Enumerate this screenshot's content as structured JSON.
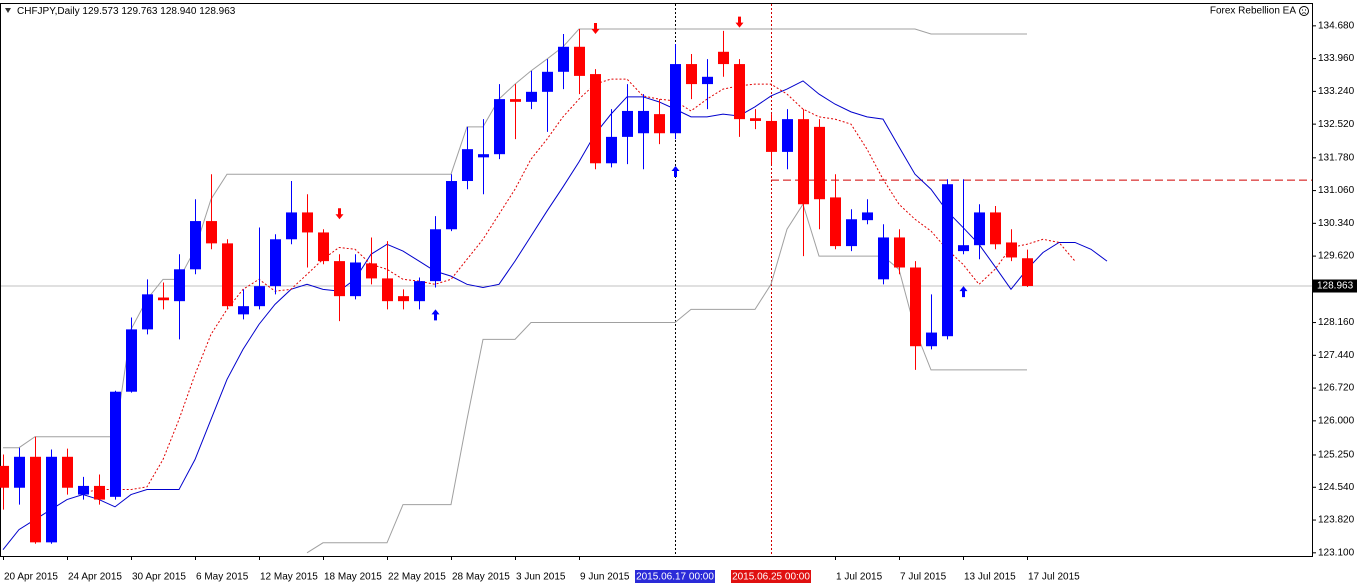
{
  "chart_data": {
    "type": "candlestick",
    "title": "CHFJPY,Daily",
    "header_values": [
      "129.573",
      "129.763",
      "128.940",
      "128.963"
    ],
    "expert_label": "Forex Rebellion EA",
    "categories": [
      "20 Apr 2015",
      null,
      null,
      null,
      "24 Apr 2015",
      null,
      null,
      null,
      "30 Apr 2015",
      null,
      null,
      null,
      "6 May 2015",
      null,
      null,
      null,
      "12 May 2015",
      null,
      null,
      null,
      "18 May 2015",
      null,
      null,
      null,
      "22 May 2015",
      null,
      null,
      null,
      "28 May 2015",
      null,
      null,
      null,
      "3 Jun 2015",
      null,
      null,
      null,
      "9 Jun 2015",
      null,
      null,
      null,
      null,
      null,
      null,
      null,
      null,
      null,
      null,
      null,
      null,
      null,
      null,
      null,
      "1 Jul 2015",
      null,
      null,
      null,
      "7 Jul 2015",
      null,
      null,
      null,
      "13 Jul 2015",
      null,
      null,
      null,
      "17 Jul 2015",
      null,
      null,
      null,
      null,
      null
    ],
    "open": [
      125.01,
      124.53,
      125.21,
      123.33,
      125.21,
      124.38,
      124.57,
      124.33,
      126.64,
      128.01,
      128.71,
      128.63,
      129.33,
      130.39,
      129.9,
      128.34,
      128.52,
      128.96,
      129.99,
      130.58,
      130.14,
      129.51,
      128.74,
      129.46,
      129.13,
      128.74,
      128.63,
      129.07,
      130.21,
      131.27,
      131.79,
      131.86,
      133.07,
      133.01,
      133.23,
      133.67,
      134.22,
      133.62,
      131.66,
      132.24,
      132.32,
      132.74,
      132.32,
      133.84,
      133.4,
      134.11,
      133.84,
      132.65,
      132.59,
      131.91,
      132.63,
      132.46,
      130.91,
      129.84,
      130.41,
      129.11,
      130.03,
      129.37,
      127.64,
      127.86,
      129.73,
      129.86,
      130.58,
      129.92,
      129.573,
      null,
      null,
      null,
      null,
      null
    ],
    "high": [
      125.26,
      125.41,
      125.65,
      125.37,
      125.39,
      124.77,
      124.82,
      126.66,
      128.27,
      129.11,
      129.04,
      129.66,
      130.87,
      131.42,
      129.99,
      128.89,
      130.25,
      130.1,
      131.27,
      130.98,
      130.21,
      129.66,
      129.66,
      130.03,
      129.95,
      128.89,
      129.15,
      130.5,
      131.42,
      132.46,
      132.63,
      133.4,
      133.4,
      133.69,
      133.95,
      134.5,
      134.61,
      133.73,
      132.85,
      133.4,
      133.18,
      133.07,
      134.28,
      134.06,
      133.95,
      134.57,
      133.95,
      132.85,
      132.74,
      132.85,
      132.85,
      132.63,
      131.42,
      130.65,
      130.87,
      130.32,
      130.21,
      129.51,
      128.78,
      131.31,
      131.31,
      130.76,
      130.72,
      130.21,
      129.763,
      null,
      null,
      null,
      null,
      null
    ],
    "low": [
      124.05,
      124.16,
      123.3,
      123.3,
      124.38,
      124.27,
      124.16,
      124.27,
      126.62,
      127.9,
      128.45,
      127.79,
      129.22,
      129.77,
      128.45,
      128.23,
      128.45,
      128.78,
      129.88,
      129.37,
      129.44,
      128.19,
      128.67,
      129.0,
      128.45,
      128.45,
      128.45,
      128.93,
      130.17,
      131.09,
      130.98,
      131.75,
      132.19,
      132.85,
      132.35,
      133.29,
      133.18,
      131.53,
      131.57,
      131.64,
      131.53,
      132.08,
      132.19,
      133.07,
      132.85,
      133.56,
      132.24,
      132.41,
      131.64,
      131.53,
      129.62,
      130.21,
      129.77,
      129.73,
      130.32,
      129.0,
      129.22,
      127.12,
      127.57,
      127.79,
      129.66,
      129.55,
      129.77,
      129.51,
      128.94,
      null,
      null,
      null,
      null,
      null
    ],
    "close": [
      124.53,
      125.21,
      123.33,
      125.21,
      124.53,
      124.57,
      124.27,
      126.64,
      128.01,
      128.78,
      128.65,
      129.33,
      130.39,
      129.9,
      128.52,
      128.52,
      128.96,
      129.99,
      130.58,
      130.14,
      129.51,
      128.74,
      129.48,
      129.13,
      128.63,
      128.63,
      129.07,
      130.21,
      131.27,
      131.97,
      131.86,
      133.07,
      133.01,
      133.23,
      133.67,
      134.22,
      133.58,
      131.66,
      132.24,
      132.81,
      132.81,
      132.32,
      133.84,
      133.4,
      133.56,
      133.84,
      132.63,
      132.59,
      131.91,
      132.63,
      130.76,
      130.87,
      129.84,
      130.43,
      130.58,
      130.03,
      129.37,
      127.64,
      127.94,
      131.2,
      129.86,
      130.58,
      129.88,
      129.59,
      128.963,
      null,
      null,
      null,
      null,
      null
    ],
    "bull_color": "#0000ff",
    "bear_color": "#ff0000",
    "series": [
      {
        "color": "#0000cc",
        "style": "solid",
        "values": [
          123.17,
          123.61,
          123.83,
          124.05,
          124.27,
          124.38,
          124.27,
          124.11,
          124.38,
          124.49,
          124.49,
          124.49,
          125.15,
          126.03,
          126.91,
          127.57,
          128.12,
          128.56,
          128.89,
          129.0,
          128.89,
          128.85,
          129.11,
          129.66,
          129.88,
          129.73,
          129.51,
          129.29,
          129.18,
          129.0,
          128.93,
          129.0,
          129.51,
          130.06,
          130.61,
          131.14,
          131.69,
          132.3,
          132.74,
          133.12,
          133.12,
          133.01,
          132.85,
          132.68,
          132.68,
          132.74,
          132.7,
          132.9,
          133.14,
          133.29,
          133.47,
          133.18,
          132.96,
          132.79,
          132.68,
          132.63,
          132.02,
          131.42,
          131.09,
          130.61,
          130.25,
          129.88,
          129.39,
          128.89,
          129.33,
          129.7,
          129.92,
          129.92,
          129.77,
          129.51
        ]
      },
      {
        "color": "#e00000",
        "style": "dotted",
        "values": [
          null,
          null,
          null,
          null,
          null,
          124.42,
          124.49,
          124.49,
          124.49,
          124.55,
          125.15,
          126.03,
          127.02,
          127.9,
          128.45,
          128.89,
          129.11,
          128.85,
          128.89,
          129.22,
          129.55,
          129.81,
          129.77,
          129.44,
          129.33,
          129.11,
          129.07,
          129.0,
          129.11,
          129.55,
          129.99,
          130.54,
          131.09,
          131.75,
          132.19,
          132.68,
          133.07,
          133.4,
          133.51,
          133.51,
          133.14,
          133.07,
          133.03,
          132.81,
          133.07,
          133.29,
          133.36,
          133.4,
          133.4,
          133.18,
          132.85,
          132.68,
          132.63,
          132.52,
          131.97,
          131.31,
          130.76,
          130.43,
          130.17,
          129.77,
          129.44,
          129.0,
          129.33,
          129.81,
          129.88,
          129.99,
          129.92,
          129.51,
          null,
          null
        ]
      },
      {
        "color": "#a0a0a0",
        "style": "solid",
        "values": [
          125.41,
          125.41,
          125.65,
          125.65,
          125.65,
          125.65,
          125.65,
          125.65,
          128.01,
          128.67,
          129.11,
          129.11,
          129.77,
          130.87,
          131.42,
          131.42,
          131.42,
          131.42,
          131.42,
          131.42,
          131.42,
          131.42,
          131.42,
          131.42,
          131.42,
          131.42,
          131.42,
          131.42,
          131.42,
          132.46,
          132.46,
          133.07,
          133.4,
          133.69,
          133.95,
          134.22,
          134.61,
          134.61,
          134.61,
          134.61,
          134.61,
          134.61,
          134.61,
          134.61,
          134.61,
          134.61,
          134.61,
          134.61,
          134.61,
          134.61,
          134.61,
          134.61,
          134.61,
          134.61,
          134.61,
          134.61,
          134.61,
          134.61,
          134.5,
          134.5,
          134.5,
          134.5,
          134.5,
          134.5,
          134.5,
          null,
          null,
          null,
          null,
          null
        ]
      },
      {
        "color": "#a0a0a0",
        "style": "solid",
        "values": [
          null,
          null,
          null,
          null,
          null,
          null,
          null,
          null,
          null,
          null,
          null,
          null,
          null,
          null,
          null,
          null,
          null,
          null,
          null,
          123.1,
          123.32,
          123.32,
          123.32,
          123.32,
          123.32,
          124.16,
          124.16,
          124.16,
          124.16,
          126.03,
          127.79,
          127.79,
          127.79,
          128.16,
          128.16,
          128.16,
          128.16,
          128.16,
          128.16,
          128.16,
          128.16,
          128.16,
          128.16,
          128.45,
          128.45,
          128.45,
          128.45,
          128.45,
          129.0,
          130.21,
          130.76,
          129.62,
          129.62,
          129.62,
          129.62,
          129.62,
          129.33,
          128.01,
          127.12,
          127.12,
          127.12,
          127.12,
          127.12,
          127.12,
          127.12,
          null,
          null,
          null,
          null,
          null
        ]
      }
    ],
    "arrows_down": [
      null,
      null,
      null,
      null,
      null,
      null,
      null,
      null,
      null,
      null,
      null,
      null,
      null,
      null,
      null,
      null,
      null,
      null,
      null,
      null,
      null,
      130.54,
      null,
      null,
      null,
      null,
      null,
      null,
      null,
      null,
      null,
      null,
      null,
      null,
      null,
      null,
      null,
      134.61,
      null,
      null,
      null,
      null,
      null,
      null,
      null,
      null,
      134.75,
      null,
      null,
      null,
      null,
      null,
      null,
      null,
      null,
      null,
      null,
      null,
      null,
      null,
      null,
      null,
      null,
      null,
      null,
      null,
      null,
      null,
      null,
      null
    ],
    "arrows_up": [
      null,
      null,
      null,
      null,
      null,
      null,
      null,
      null,
      null,
      null,
      null,
      null,
      null,
      null,
      null,
      null,
      null,
      null,
      null,
      null,
      null,
      null,
      null,
      null,
      null,
      null,
      null,
      128.34,
      null,
      null,
      null,
      null,
      null,
      null,
      null,
      null,
      null,
      null,
      null,
      null,
      null,
      null,
      131.49,
      null,
      null,
      null,
      null,
      null,
      null,
      null,
      null,
      null,
      null,
      null,
      null,
      null,
      null,
      null,
      null,
      null,
      128.85,
      null,
      null,
      null,
      null,
      null,
      null,
      null,
      null,
      null
    ],
    "ylim": [
      123.03,
      135.16
    ],
    "yticks": [
      {
        "value": 134.68,
        "label": "134.680"
      },
      {
        "value": 133.96,
        "label": "133.960"
      },
      {
        "value": 133.24,
        "label": "133.240"
      },
      {
        "value": 132.52,
        "label": "132.520"
      },
      {
        "value": 131.78,
        "label": "131.780"
      },
      {
        "value": 131.06,
        "label": "131.060"
      },
      {
        "value": 130.34,
        "label": "130.340"
      },
      {
        "value": 129.62,
        "label": "129.620"
      },
      {
        "value": 128.16,
        "label": "128.160"
      },
      {
        "value": 127.44,
        "label": "127.440"
      },
      {
        "value": 126.72,
        "label": "126.720"
      },
      {
        "value": 126.0,
        "label": "126.000"
      },
      {
        "value": 125.25,
        "label": "125.250"
      },
      {
        "value": 124.54,
        "label": "124.540"
      },
      {
        "value": 123.82,
        "label": "123.820"
      },
      {
        "value": 123.1,
        "label": "123.100"
      }
    ],
    "price_line": {
      "value": 128.963,
      "label": "128.963",
      "color": "#c0c0c0"
    },
    "hlines": [
      {
        "value": 131.29,
        "color": "#d00000",
        "from_index": 48
      }
    ],
    "vlines": [
      {
        "at": 42,
        "label": "2015.06.17 00:00",
        "line_color": "#000000",
        "box_color": "#2a2ad8"
      },
      {
        "at": 48,
        "label": "2015.06.25 00:00",
        "line_color": "#d00000",
        "box_color": "#e01010"
      }
    ]
  }
}
